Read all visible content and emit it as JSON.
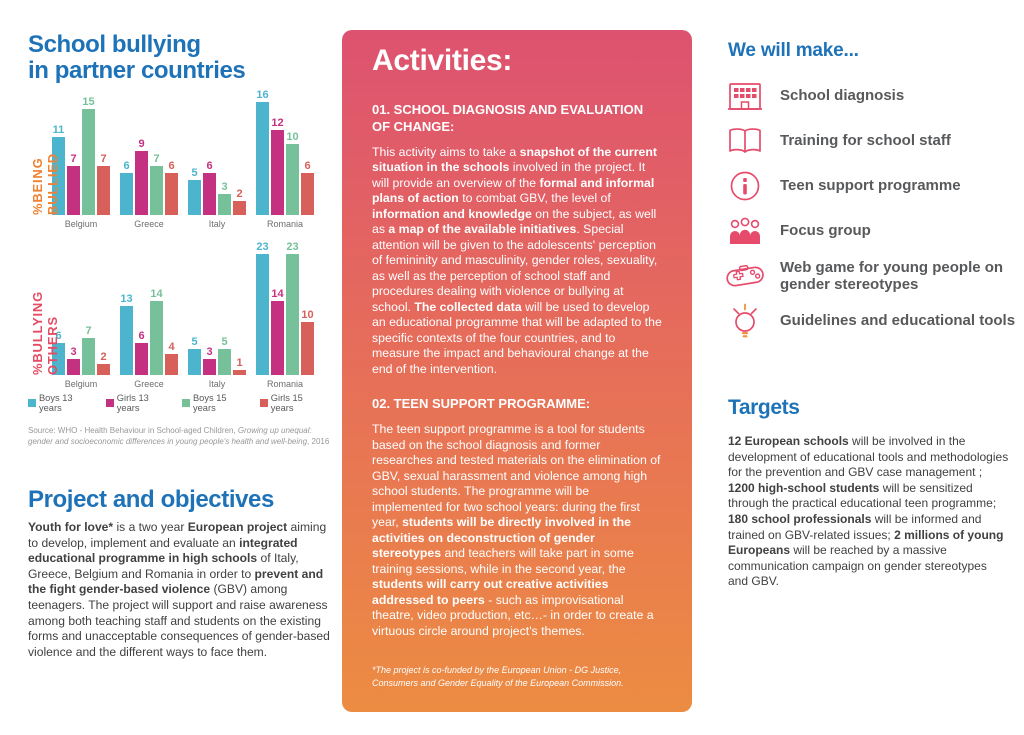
{
  "page": {
    "background": "#ffffff"
  },
  "left": {
    "title_line1": "School bullying",
    "title_line2": "in partner countries",
    "source_runs": [
      {
        "t": "Source: WHO - Health Behaviour in School-aged Children, "
      },
      {
        "t": "Growing up unequal: gender and socioeconomic differences in young people's health and well-being",
        "i": true
      },
      {
        "t": ", 2016"
      }
    ],
    "project_heading": "Project and objectives",
    "project_runs": [
      {
        "t": "Youth for love*",
        "b": true
      },
      {
        "t": " is a two year "
      },
      {
        "t": "European project",
        "b": true
      },
      {
        "t": " aiming to develop, implement and evaluate an "
      },
      {
        "t": "integrated educational programme in high schools",
        "b": true
      },
      {
        "t": " of Italy, Greece, Belgium and Romania in order to "
      },
      {
        "t": "prevent and the fight gender-based violence",
        "b": true
      },
      {
        "t": " (GBV) among teenagers. The project will support and raise awareness among both teaching staff and students on the existing forms and unacceptable consequences of gender-based violence and the different ways to face them."
      }
    ]
  },
  "activities": {
    "heading": "Activities:",
    "gradient_top": "#dd5270",
    "gradient_mid": "#e66c5b",
    "gradient_bottom": "#ec8c42",
    "sections": [
      {
        "title": "01. SCHOOL DIAGNOSIS AND EVALUATION OF CHANGE:",
        "runs": [
          {
            "t": "This activity aims to take a "
          },
          {
            "t": "snapshot of the current situation in the schools",
            "b": true
          },
          {
            "t": " involved in the project. It will provide an overview of the "
          },
          {
            "t": "formal and informal plans of action",
            "b": true
          },
          {
            "t": " to combat GBV, the level of "
          },
          {
            "t": "information and knowledge",
            "b": true
          },
          {
            "t": " on the subject, as well as "
          },
          {
            "t": "a map of the available initiatives",
            "b": true
          },
          {
            "t": ". Special attention will be given to the adolescents' perception of femininity and masculinity, gender roles, sexuality, as well as the perception of school staff and procedures dealing with violence or bullying at school. "
          },
          {
            "t": "The collected data",
            "b": true
          },
          {
            "t": " will be used to develop an educational programme that will be adapted to the specific contexts of the four countries, and to measure the impact and behavioural change at the end of the intervention."
          }
        ]
      },
      {
        "title": "02. TEEN SUPPORT PROGRAMME:",
        "runs": [
          {
            "t": "The teen support programme is a tool for students based on the school diagnosis and former researches and tested materials on the elimination of GBV, sexual harassment and violence among high school students. The programme will be implemented for two school years: during the first year, "
          },
          {
            "t": "students will be directly involved in the activities on deconstruction of gender stereotypes",
            "b": true
          },
          {
            "t": " and teachers will take part in some training sessions, while in the second year, the "
          },
          {
            "t": "students will carry out creative activities addressed to peers",
            "b": true
          },
          {
            "t": " - such as  improvisational theatre, video production, etc…- in order to create a virtuous circle around project's themes."
          }
        ]
      }
    ],
    "footnote": "*The project is co-funded by the European Union - DG Justice, Consumers and Gender Equality of the European Commission."
  },
  "right": {
    "heading": "We will make...",
    "items": [
      {
        "icon": "school-icon",
        "label": "School diagnosis"
      },
      {
        "icon": "book-icon",
        "label": "Training for school staff"
      },
      {
        "icon": "info-icon",
        "label": "Teen support programme"
      },
      {
        "icon": "people-icon",
        "label": "Focus group"
      },
      {
        "icon": "gamepad-icon",
        "label": "Web game for young people on gender stereotypes"
      },
      {
        "icon": "lightbulb-icon",
        "label": "Guidelines and educational tools"
      }
    ],
    "targets_heading": "Targets",
    "targets_runs": [
      {
        "t": "12 European schools",
        "b": true
      },
      {
        "t": " will be involved in the development of educational tools and methodologies for the prevention and GBV case management ; "
      },
      {
        "t": "1200 high-school students",
        "b": true
      },
      {
        "t": " will be sensitized through the practical educational teen programme; "
      },
      {
        "t": "180 school professionals",
        "b": true
      },
      {
        "t": " will be informed and trained on GBV-related issues; "
      },
      {
        "t": "2 millions of young Europeans",
        "b": true
      },
      {
        "t": " will be reached by a massive communication campaign on gender stereotypes and GBV."
      }
    ]
  },
  "chart_data": [
    {
      "type": "bar",
      "title": "%BEING BULLIED",
      "axis_label_color": "#f08032",
      "categories": [
        "Belgium",
        "Greece",
        "Italy",
        "Romania"
      ],
      "series": [
        {
          "name": "Boys 13 years",
          "color": "#4db4cd",
          "values": [
            11,
            6,
            5,
            16
          ]
        },
        {
          "name": "Girls 13 years",
          "color": "#c53181",
          "values": [
            7,
            9,
            6,
            12
          ]
        },
        {
          "name": "Boys 15 years",
          "color": "#76c199",
          "values": [
            15,
            7,
            3,
            10
          ]
        },
        {
          "name": "Girls 15 years",
          "color": "#d7605a",
          "values": [
            7,
            6,
            2,
            6
          ]
        }
      ],
      "xlabel": "",
      "ylabel": "%BEING BULLIED",
      "ylim": [
        0,
        17
      ],
      "grid": false,
      "legend_position": "bottom-shared",
      "value_labels": true
    },
    {
      "type": "bar",
      "title": "%BULLYING OTHERS",
      "axis_label_color": "#e54b63",
      "categories": [
        "Belgium",
        "Greece",
        "Italy",
        "Romania"
      ],
      "series": [
        {
          "name": "Boys 13 years",
          "color": "#4db4cd",
          "values": [
            6,
            13,
            5,
            23
          ]
        },
        {
          "name": "Girls 13 years",
          "color": "#c53181",
          "values": [
            3,
            6,
            3,
            14
          ]
        },
        {
          "name": "Boys 15 years",
          "color": "#76c199",
          "values": [
            7,
            14,
            5,
            23
          ]
        },
        {
          "name": "Girls 15 years",
          "color": "#d7605a",
          "values": [
            2,
            4,
            1,
            10
          ]
        }
      ],
      "xlabel": "",
      "ylabel": "%BULLYING OTHERS",
      "ylim": [
        0,
        25
      ],
      "grid": false,
      "legend_position": "bottom-shared",
      "value_labels": true
    }
  ]
}
